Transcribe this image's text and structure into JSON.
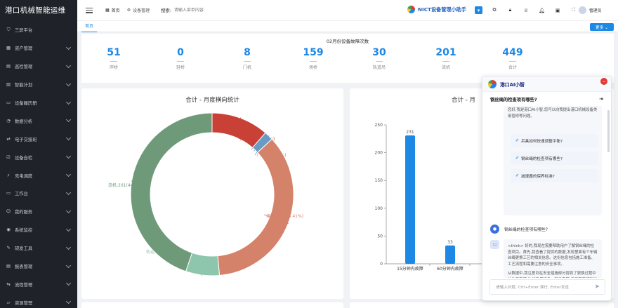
{
  "app": {
    "title": "港口机械智能运维"
  },
  "sidebar": {
    "items": [
      {
        "label": "三屏平台",
        "icon": "shield-icon",
        "chevron": false
      },
      {
        "label": "资产管理",
        "icon": "grid-icon",
        "chevron": true
      },
      {
        "label": "巡检管理",
        "icon": "clipboard-icon",
        "chevron": true
      },
      {
        "label": "智能计划",
        "icon": "calendar-icon",
        "chevron": true
      },
      {
        "label": "设备履历册",
        "icon": "book-icon",
        "chevron": true
      },
      {
        "label": "数据分析",
        "icon": "chart-icon",
        "chevron": true
      },
      {
        "label": "电子交接班",
        "icon": "swap-icon",
        "chevron": true
      },
      {
        "label": "设备自检",
        "icon": "check-icon",
        "chevron": true
      },
      {
        "label": "充电调度",
        "icon": "plug-icon",
        "chevron": true
      },
      {
        "label": "工作台",
        "icon": "monitor-icon",
        "chevron": true
      },
      {
        "label": "我的服务",
        "icon": "user-icon",
        "chevron": true
      },
      {
        "label": "系统监控",
        "icon": "eye-icon",
        "chevron": true
      },
      {
        "label": "研发工具",
        "icon": "tool-icon",
        "chevron": true
      },
      {
        "label": "报表管理",
        "icon": "report-icon",
        "chevron": true
      },
      {
        "label": "流程管理",
        "icon": "flow-icon",
        "chevron": true
      },
      {
        "label": "资源管理",
        "icon": "folder-icon",
        "chevron": true
      }
    ]
  },
  "header": {
    "breadcrumb_home": "首页",
    "breadcrumb_current": "设备管理",
    "search_label": "搜索:",
    "search_placeholder": "请输入菜单内容",
    "assistant_label": "NICT设备管理小助手",
    "user_name": "管理员"
  },
  "tabs": {
    "active": "首页",
    "more_label": "更多 ⌄"
  },
  "stats": {
    "title": "02月份设备故障次数",
    "items": [
      {
        "value": "51",
        "label": "岸桥"
      },
      {
        "value": "0",
        "label": "轻桥"
      },
      {
        "value": "8",
        "label": "门机"
      },
      {
        "value": "159",
        "label": "场桥"
      },
      {
        "value": "30",
        "label": "轨道吊"
      },
      {
        "value": "201",
        "label": "流机"
      },
      {
        "value": "449",
        "label": "合计"
      }
    ]
  },
  "chart_data": [
    {
      "type": "pie",
      "title": "合计 - 月度横向统计",
      "labels": [
        "岸桥",
        "轻桥",
        "门机",
        "场桥",
        "轨道吊",
        "流机"
      ],
      "values": [
        51,
        0,
        8,
        159,
        30,
        201
      ],
      "slice_labels": [
        "岸桥:51(11.36%)",
        "轻桥:0(0%)",
        "门机:8(1.78%)",
        "场桥:159(35.41%)",
        "轨道吊:30(6.68%)",
        "流机:201(44.77%)"
      ],
      "colors": [
        "#c94036",
        "#5d8fb0",
        "#6b9bc3",
        "#d5826a",
        "#8ec6ad",
        "#6f9a7a"
      ]
    },
    {
      "type": "bar",
      "title": "合计 - 月",
      "categories": [
        "15分钟内故障",
        "60分钟内故障",
        ""
      ],
      "values": [
        231,
        33,
        null
      ],
      "data_labels": [
        "231",
        "33",
        ""
      ],
      "ylim": [
        0,
        250
      ],
      "yticks": [
        "0",
        "50",
        "100",
        "150",
        "200",
        "250"
      ],
      "color": "#1e88e5"
    }
  ],
  "ai": {
    "title": "港口AI小智",
    "question": "钢丝绳的检查项有哪些?",
    "intro": "您好,我是港口AI小智,您可以向我提出港口机械设备类用管修等问题。",
    "suggestions": [
      "吊具如何快速调整平衡?",
      "钢丝绳的检查项有哪些?",
      "减速器的保养标准?"
    ],
    "user_message": "钢丝绳的检查项有哪些?",
    "answer_p1": "<think> 好的,我现在需要帮助用户了解钢丝绳的检查项目。首先,我查看了提供的数据,发现里面有个车辆丝绳更换工艺的相关信息。这份信息包括施工准备、工艺流程和需要注意的安全事项。",
    "answer_p2": "从数据中,我注意到在安全措施部分提到了更换过程中的注意事项,比如确保设备、起重者等,但没有直接列出具体的检查项目。不过,在更换过程中需要检查钢丝绳",
    "input_placeholder": "请输入问题, Ctrl+Enter 换行, Enter发送"
  }
}
